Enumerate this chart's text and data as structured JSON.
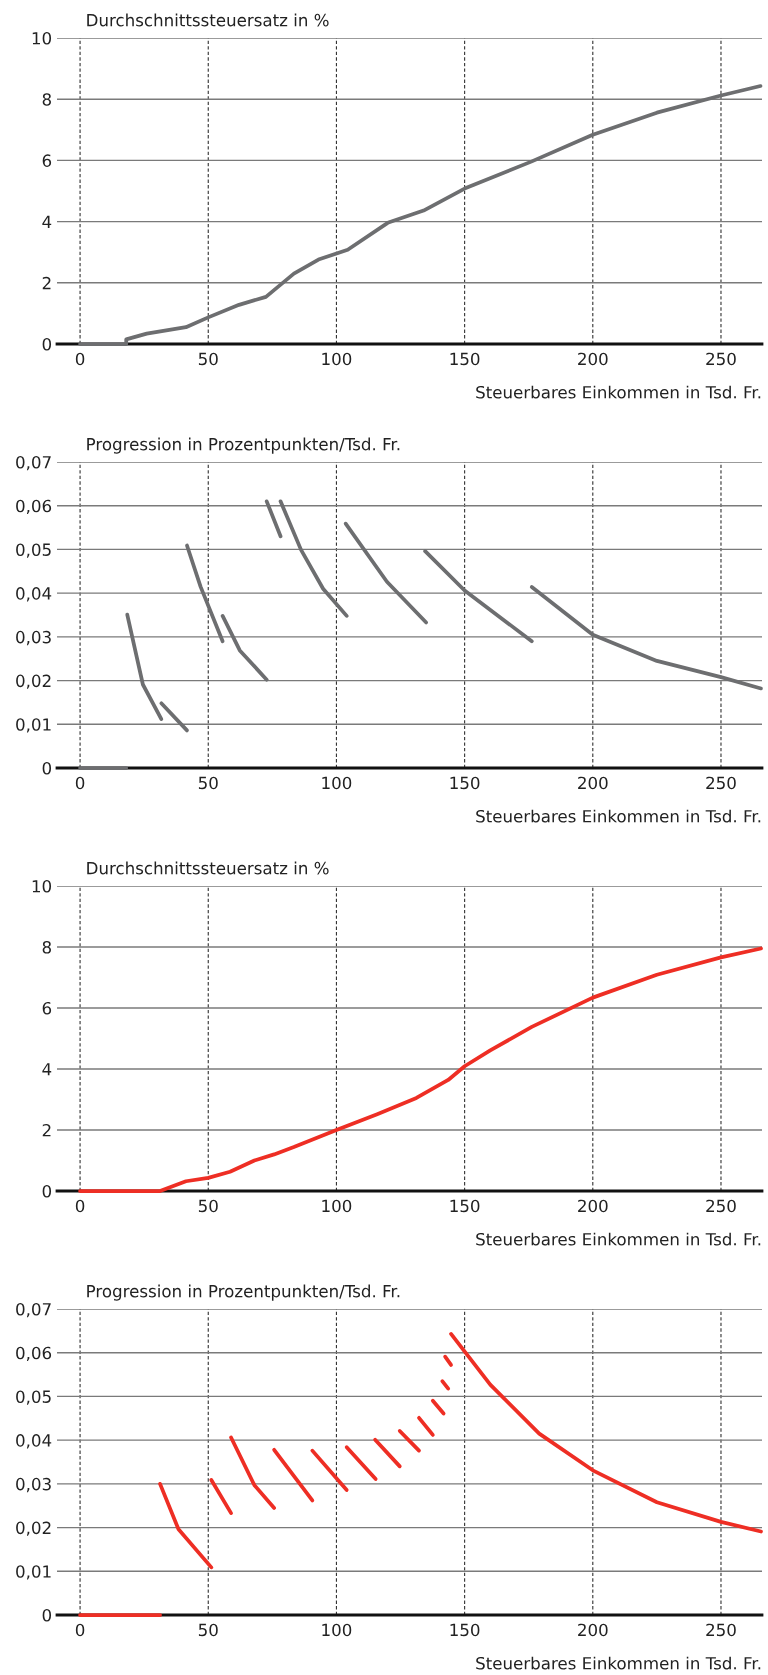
{
  "chart_data": [
    {
      "type": "line",
      "ylabel": "Durchschnittssteuersatz in %",
      "xlabel": "Steuerbares Einkommen in Tsd. Fr.",
      "xlim": [
        -9,
        266
      ],
      "xticks": [
        0,
        50,
        100,
        150,
        200,
        250
      ],
      "ylim": [
        0,
        10
      ],
      "yticks": [
        0,
        2,
        4,
        6,
        8,
        10
      ],
      "grid": true,
      "series": [
        {
          "color": "#6d6e70",
          "x": [
            0,
            18,
            18,
            26,
            41.3,
            50,
            62,
            72.5,
            83.4,
            93,
            104.4,
            120,
            134,
            150,
            176,
            200,
            225,
            250,
            265.4
          ],
          "values": [
            0,
            0,
            0.15,
            0.34,
            0.55,
            0.87,
            1.28,
            1.54,
            2.3,
            2.76,
            3.08,
            3.96,
            4.36,
            5.08,
            5.96,
            6.84,
            7.56,
            8.12,
            8.43
          ]
        }
      ]
    },
    {
      "type": "line",
      "ylabel": "Progression in Prozentpunkten/Tsd. Fr.",
      "xlabel": "Steuerbares Einkommen in Tsd. Fr.",
      "xlim": [
        -9,
        266
      ],
      "xticks": [
        0,
        50,
        100,
        150,
        200,
        250
      ],
      "ylim": [
        0,
        0.07
      ],
      "yticks": [
        0,
        {
          "value": 0.01,
          "label": "0,01"
        },
        {
          "value": 0.02,
          "label": "0,02"
        },
        {
          "value": 0.03,
          "label": "0,03"
        },
        {
          "value": 0.04,
          "label": "0,04"
        },
        {
          "value": 0.05,
          "label": "0,05"
        },
        {
          "value": 0.06,
          "label": "0,06"
        },
        {
          "value": 0.07,
          "label": "0,07"
        }
      ],
      "grid": true,
      "series": [
        {
          "color": "#6d6e70",
          "x": [
            0,
            18
          ],
          "values": [
            0,
            0
          ]
        },
        {
          "color": "#6d6e70",
          "x": [
            18.4,
            24.5,
            31.7
          ],
          "values": [
            0.0351,
            0.0191,
            0.0112
          ]
        },
        {
          "color": "#6d6e70",
          "x": [
            31.7,
            41.7
          ],
          "values": [
            0.0148,
            0.0086
          ]
        },
        {
          "color": "#6d6e70",
          "x": [
            41.7,
            47,
            55.6
          ],
          "values": [
            0.0509,
            0.0415,
            0.029
          ]
        },
        {
          "color": "#6d6e70",
          "x": [
            55.6,
            62.3,
            72.8
          ],
          "values": [
            0.0348,
            0.0269,
            0.0202
          ]
        },
        {
          "color": "#6d6e70",
          "x": [
            72.8,
            78.2
          ],
          "values": [
            0.061,
            0.053
          ]
        },
        {
          "color": "#6d6e70",
          "x": [
            78.2,
            86.2,
            94.8,
            104
          ],
          "values": [
            0.061,
            0.0499,
            0.041,
            0.0348
          ]
        },
        {
          "color": "#6d6e70",
          "x": [
            103.6,
            119.7,
            135
          ],
          "values": [
            0.0559,
            0.0426,
            0.0333
          ]
        },
        {
          "color": "#6d6e70",
          "x": [
            134.6,
            150,
            176.2
          ],
          "values": [
            0.0496,
            0.0406,
            0.029
          ]
        },
        {
          "color": "#6d6e70",
          "x": [
            176.2,
            200,
            225,
            250,
            265.6
          ],
          "values": [
            0.0414,
            0.0305,
            0.0245,
            0.0208,
            0.0182
          ]
        }
      ]
    },
    {
      "type": "line",
      "ylabel": "Durchschnittssteuersatz in %",
      "xlabel": "Steuerbares Einkommen in Tsd. Fr.",
      "xlim": [
        -9,
        266
      ],
      "xticks": [
        0,
        50,
        100,
        150,
        200,
        250
      ],
      "ylim": [
        0,
        10
      ],
      "yticks": [
        0,
        2,
        4,
        6,
        8,
        10
      ],
      "grid": true,
      "series": [
        {
          "color": "#ee2e24",
          "x": [
            0,
            31.2,
            41.3,
            50,
            58.5,
            68,
            75.7,
            83.4,
            100,
            115.9,
            131.2,
            143.6,
            150,
            160,
            176.2,
            200,
            225,
            250,
            265.6
          ],
          "values": [
            0,
            0,
            0.32,
            0.43,
            0.63,
            1.0,
            1.2,
            1.44,
            2.0,
            2.52,
            3.05,
            3.64,
            4.09,
            4.61,
            5.38,
            6.34,
            7.09,
            7.66,
            7.95
          ]
        }
      ]
    },
    {
      "type": "line",
      "ylabel": "Progression in Prozentpunkten/Tsd. Fr.",
      "xlabel": "Steuerbares Einkommen in Tsd. Fr.",
      "xlim": [
        -9,
        266
      ],
      "xticks": [
        0,
        50,
        100,
        150,
        200,
        250
      ],
      "ylim": [
        0,
        0.07
      ],
      "yticks": [
        0,
        {
          "value": 0.01,
          "label": "0,01"
        },
        {
          "value": 0.02,
          "label": "0,02"
        },
        {
          "value": 0.03,
          "label": "0,03"
        },
        {
          "value": 0.04,
          "label": "0,04"
        },
        {
          "value": 0.05,
          "label": "0,05"
        },
        {
          "value": 0.06,
          "label": "0,06"
        },
        {
          "value": 0.07,
          "label": "0,07"
        }
      ],
      "grid": true,
      "series": [
        {
          "color": "#ee2e24",
          "x": [
            0,
            31.2
          ],
          "values": [
            0,
            0
          ]
        },
        {
          "color": "#ee2e24",
          "x": [
            31.2,
            38.4,
            51.2
          ],
          "values": [
            0.03,
            0.0196,
            0.0109
          ]
        },
        {
          "color": "#ee2e24",
          "x": [
            51.2,
            58.9
          ],
          "values": [
            0.0309,
            0.0233
          ]
        },
        {
          "color": "#ee2e24",
          "x": [
            58.9,
            68,
            75.7
          ],
          "values": [
            0.0406,
            0.0297,
            0.0245
          ]
        },
        {
          "color": "#ee2e24",
          "x": [
            75.7,
            90.6
          ],
          "values": [
            0.0378,
            0.0262
          ]
        },
        {
          "color": "#ee2e24",
          "x": [
            90.6,
            104
          ],
          "values": [
            0.0376,
            0.0286
          ]
        },
        {
          "color": "#ee2e24",
          "x": [
            104,
            115.3
          ],
          "values": [
            0.0384,
            0.0311
          ]
        },
        {
          "color": "#ee2e24",
          "x": [
            115.1,
            124.7
          ],
          "values": [
            0.0401,
            0.034
          ]
        },
        {
          "color": "#ee2e24",
          "x": [
            124.7,
            132.2
          ],
          "values": [
            0.0421,
            0.0376
          ]
        },
        {
          "color": "#ee2e24",
          "x": [
            132.2,
            137.6
          ],
          "values": [
            0.0451,
            0.0412
          ]
        },
        {
          "color": "#ee2e24",
          "x": [
            137.6,
            141.8
          ],
          "values": [
            0.049,
            0.0461
          ]
        },
        {
          "color": "#ee2e24",
          "x": [
            141.3,
            143.6
          ],
          "values": [
            0.0535,
            0.0518
          ]
        },
        {
          "color": "#ee2e24",
          "x": [
            142.4,
            144.7
          ],
          "values": [
            0.0591,
            0.0572
          ]
        },
        {
          "color": "#ee2e24",
          "x": [
            144.7,
            160,
            179.1,
            200,
            225,
            250,
            265.6
          ],
          "values": [
            0.0643,
            0.0527,
            0.0415,
            0.0331,
            0.0258,
            0.0213,
            0.0191
          ]
        }
      ]
    }
  ]
}
